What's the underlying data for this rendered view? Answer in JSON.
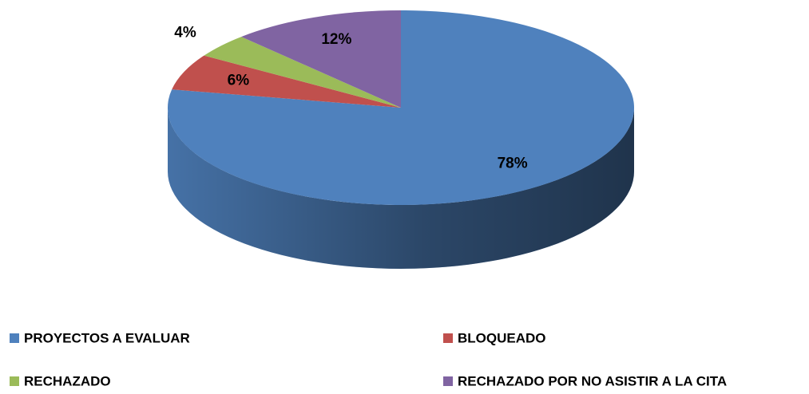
{
  "chart_data": {
    "type": "pie",
    "categories": [
      "PROYECTOS A EVALUAR",
      "BLOQUEADO",
      "RECHAZADO",
      "RECHAZADO POR NO ASISTIR A LA CITA"
    ],
    "values": [
      78,
      6,
      4,
      12
    ],
    "value_labels": [
      "78%",
      "6%",
      "4%",
      "12%"
    ],
    "colors": [
      "#4f81bd",
      "#c0504d",
      "#9bbb59",
      "#8064a2"
    ],
    "legend": "bottom"
  }
}
